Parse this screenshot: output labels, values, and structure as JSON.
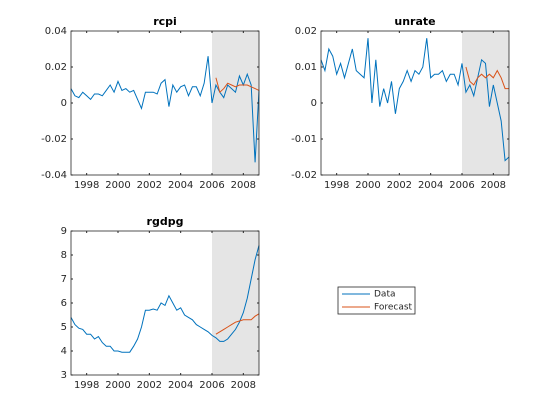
{
  "chart_data": [
    {
      "type": "line",
      "title": "rcpi",
      "xlim": [
        1997,
        2009
      ],
      "xticks": [
        1998,
        2000,
        2002,
        2004,
        2006,
        2008
      ],
      "ylim": [
        -0.04,
        0.04
      ],
      "yticks": [
        -0.04,
        -0.02,
        0,
        0.02,
        0.04
      ],
      "shade_xlim": [
        2006,
        2009
      ],
      "shade_color": "#e5e5e5",
      "series": [
        {
          "name": "Data",
          "color": "#0072bd",
          "x": [
            1997,
            1997.25,
            1997.5,
            1997.75,
            1998,
            1998.25,
            1998.5,
            1998.75,
            1999,
            1999.25,
            1999.5,
            1999.75,
            2000,
            2000.25,
            2000.5,
            2000.75,
            2001,
            2001.25,
            2001.5,
            2001.75,
            2002,
            2002.25,
            2002.5,
            2002.75,
            2003,
            2003.25,
            2003.5,
            2003.75,
            2004,
            2004.25,
            2004.5,
            2004.75,
            2005,
            2005.25,
            2005.5,
            2005.75,
            2006,
            2006.25,
            2006.5,
            2006.75,
            2007,
            2007.25,
            2007.5,
            2007.75,
            2008,
            2008.25,
            2008.5,
            2008.75,
            2009
          ],
          "values": [
            0.008,
            0.004,
            0.003,
            0.006,
            0.004,
            0.002,
            0.005,
            0.005,
            0.004,
            0.007,
            0.01,
            0.006,
            0.012,
            0.007,
            0.008,
            0.006,
            0.007,
            0.002,
            -0.003,
            0.006,
            0.006,
            0.006,
            0.005,
            0.011,
            0.013,
            -0.002,
            0.01,
            0.006,
            0.009,
            0.01,
            0.004,
            0.009,
            0.009,
            0.004,
            0.011,
            0.026,
            0.0,
            0.01,
            0.006,
            0.003,
            0.01,
            0.008,
            0.006,
            0.015,
            0.01,
            0.016,
            0.01,
            -0.033,
            0.007
          ]
        },
        {
          "name": "Forecast",
          "color": "#d95319",
          "x": [
            2006.25,
            2006.5,
            2006.75,
            2007,
            2007.25,
            2007.5,
            2007.75,
            2008,
            2008.25,
            2008.5,
            2008.75,
            2009
          ],
          "values": [
            0.014,
            0.006,
            0.008,
            0.011,
            0.01,
            0.009,
            0.01,
            0.01,
            0.01,
            0.009,
            0.008,
            0.007
          ]
        }
      ]
    },
    {
      "type": "line",
      "title": "unrate",
      "xlim": [
        1997,
        2009
      ],
      "xticks": [
        1998,
        2000,
        2002,
        2004,
        2006,
        2008
      ],
      "ylim": [
        -0.02,
        0.02
      ],
      "yticks": [
        -0.02,
        -0.01,
        0,
        0.01,
        0.02
      ],
      "shade_xlim": [
        2006,
        2009
      ],
      "shade_color": "#e5e5e5",
      "series": [
        {
          "name": "Data",
          "color": "#0072bd",
          "x": [
            1997,
            1997.25,
            1997.5,
            1997.75,
            1998,
            1998.25,
            1998.5,
            1998.75,
            1999,
            1999.25,
            1999.5,
            1999.75,
            2000,
            2000.25,
            2000.5,
            2000.75,
            2001,
            2001.25,
            2001.5,
            2001.75,
            2002,
            2002.25,
            2002.5,
            2002.75,
            2003,
            2003.25,
            2003.5,
            2003.75,
            2004,
            2004.25,
            2004.5,
            2004.75,
            2005,
            2005.25,
            2005.5,
            2005.75,
            2006,
            2006.25,
            2006.5,
            2006.75,
            2007,
            2007.25,
            2007.5,
            2007.75,
            2008,
            2008.25,
            2008.5,
            2008.75,
            2009
          ],
          "values": [
            0.012,
            0.009,
            0.015,
            0.013,
            0.008,
            0.011,
            0.007,
            0.011,
            0.015,
            0.009,
            0.008,
            0.007,
            0.018,
            0.0,
            0.012,
            -0.001,
            0.004,
            0.0,
            0.006,
            -0.003,
            0.004,
            0.006,
            0.009,
            0.006,
            0.009,
            0.008,
            0.01,
            0.018,
            0.007,
            0.008,
            0.008,
            0.009,
            0.006,
            0.008,
            0.008,
            0.005,
            0.011,
            0.003,
            0.005,
            0.002,
            0.007,
            0.012,
            0.011,
            -0.001,
            0.005,
            0.0,
            -0.005,
            -0.016,
            -0.015
          ]
        },
        {
          "name": "Forecast",
          "color": "#d95319",
          "x": [
            2006.25,
            2006.5,
            2006.75,
            2007,
            2007.25,
            2007.5,
            2007.75,
            2008,
            2008.25,
            2008.5,
            2008.75,
            2009
          ],
          "values": [
            0.01,
            0.006,
            0.005,
            0.007,
            0.008,
            0.007,
            0.008,
            0.007,
            0.009,
            0.007,
            0.004,
            0.004
          ]
        }
      ]
    },
    {
      "type": "line",
      "title": "rgdpg",
      "xlim": [
        1997,
        2009
      ],
      "xticks": [
        1998,
        2000,
        2002,
        2004,
        2006,
        2008
      ],
      "ylim": [
        3,
        9
      ],
      "yticks": [
        3,
        4,
        5,
        6,
        7,
        8,
        9
      ],
      "shade_xlim": [
        2006,
        2009
      ],
      "shade_color": "#e5e5e5",
      "series": [
        {
          "name": "Data",
          "color": "#0072bd",
          "x": [
            1997,
            1997.25,
            1997.5,
            1997.75,
            1998,
            1998.25,
            1998.5,
            1998.75,
            1999,
            1999.25,
            1999.5,
            1999.75,
            2000,
            2000.25,
            2000.5,
            2000.75,
            2001,
            2001.25,
            2001.5,
            2001.75,
            2002,
            2002.25,
            2002.5,
            2002.75,
            2003,
            2003.25,
            2003.5,
            2003.75,
            2004,
            2004.25,
            2004.5,
            2004.75,
            2005,
            2005.25,
            2005.5,
            2005.75,
            2006,
            2006.25,
            2006.5,
            2006.75,
            2007,
            2007.25,
            2007.5,
            2007.75,
            2008,
            2008.25,
            2008.5,
            2008.75,
            2009
          ],
          "values": [
            5.4,
            5.1,
            4.95,
            4.9,
            4.7,
            4.7,
            4.5,
            4.6,
            4.35,
            4.2,
            4.2,
            4.0,
            4.0,
            3.95,
            3.95,
            3.95,
            4.2,
            4.5,
            5.0,
            5.7,
            5.7,
            5.75,
            5.7,
            6.0,
            5.9,
            6.3,
            6.0,
            5.7,
            5.8,
            5.5,
            5.4,
            5.3,
            5.1,
            5.0,
            4.9,
            4.8,
            4.65,
            4.55,
            4.4,
            4.4,
            4.5,
            4.7,
            4.9,
            5.2,
            5.6,
            6.2,
            7.0,
            7.8,
            8.4
          ]
        },
        {
          "name": "Forecast",
          "color": "#d95319",
          "x": [
            2006.25,
            2006.5,
            2006.75,
            2007,
            2007.25,
            2007.5,
            2007.75,
            2008,
            2008.25,
            2008.5,
            2008.75,
            2009
          ],
          "values": [
            4.7,
            4.8,
            4.9,
            5.0,
            5.1,
            5.2,
            5.25,
            5.3,
            5.3,
            5.3,
            5.45,
            5.55
          ]
        }
      ]
    }
  ]
}
